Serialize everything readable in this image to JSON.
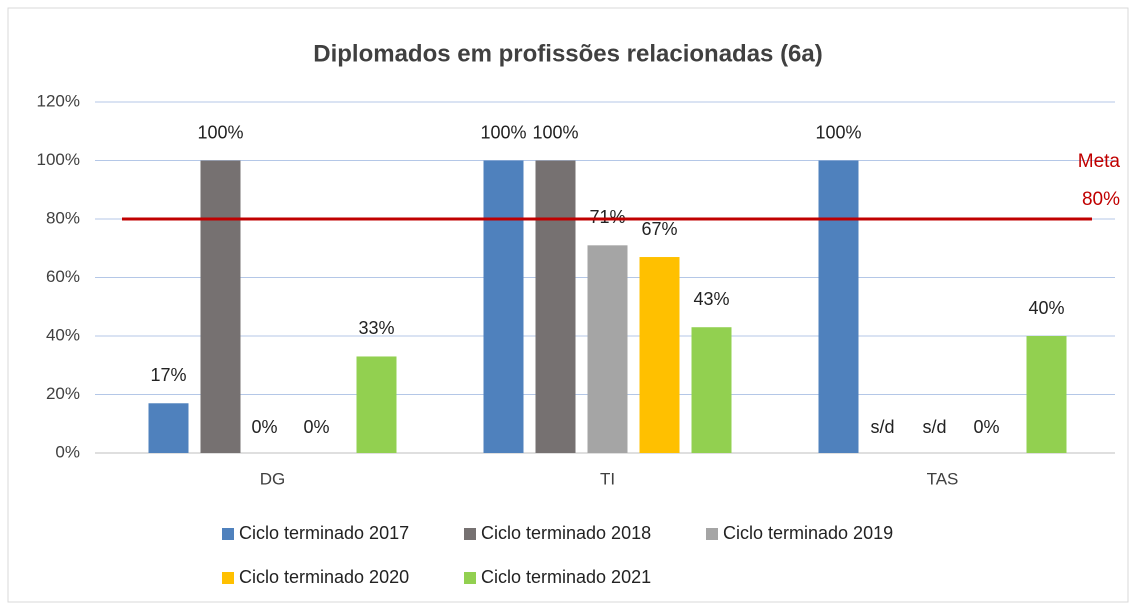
{
  "chart_data": {
    "type": "bar",
    "title": "Diplomados em profissões relacionadas (6a)",
    "categories": [
      "DG",
      "TI",
      "TAS"
    ],
    "series": [
      {
        "name": "Ciclo terminado 2017",
        "color": "#4f81bd",
        "values": [
          17,
          100,
          100
        ],
        "value_labels": [
          "17%",
          "100%",
          "100%"
        ]
      },
      {
        "name": "Ciclo terminado 2018",
        "color": "#767171",
        "values": [
          100,
          100,
          null
        ],
        "value_labels": [
          "100%",
          "100%",
          "s/d"
        ]
      },
      {
        "name": "Ciclo terminado 2019",
        "color": "#a5a5a5",
        "values": [
          0,
          71,
          null
        ],
        "value_labels": [
          "0%",
          "71%",
          "s/d"
        ]
      },
      {
        "name": "Ciclo terminado 2020",
        "color": "#ffc000",
        "values": [
          0,
          67,
          0
        ],
        "value_labels": [
          "0%",
          "67%",
          "0%"
        ]
      },
      {
        "name": "Ciclo terminado 2021",
        "color": "#92d050",
        "values": [
          33,
          43,
          40
        ],
        "value_labels": [
          "33%",
          "43%",
          "40%"
        ]
      }
    ],
    "ylim": [
      0,
      120
    ],
    "yticks": [
      {
        "value": 0,
        "label": "0%"
      },
      {
        "value": 20,
        "label": "20%"
      },
      {
        "value": 40,
        "label": "40%"
      },
      {
        "value": 60,
        "label": "60%"
      },
      {
        "value": 80,
        "label": "80%"
      },
      {
        "value": 100,
        "label": "100%"
      },
      {
        "value": 120,
        "label": "120%"
      }
    ],
    "grid": true,
    "target": {
      "value": 80,
      "label": "Meta",
      "value_label": "80%",
      "color": "#c00000"
    }
  }
}
